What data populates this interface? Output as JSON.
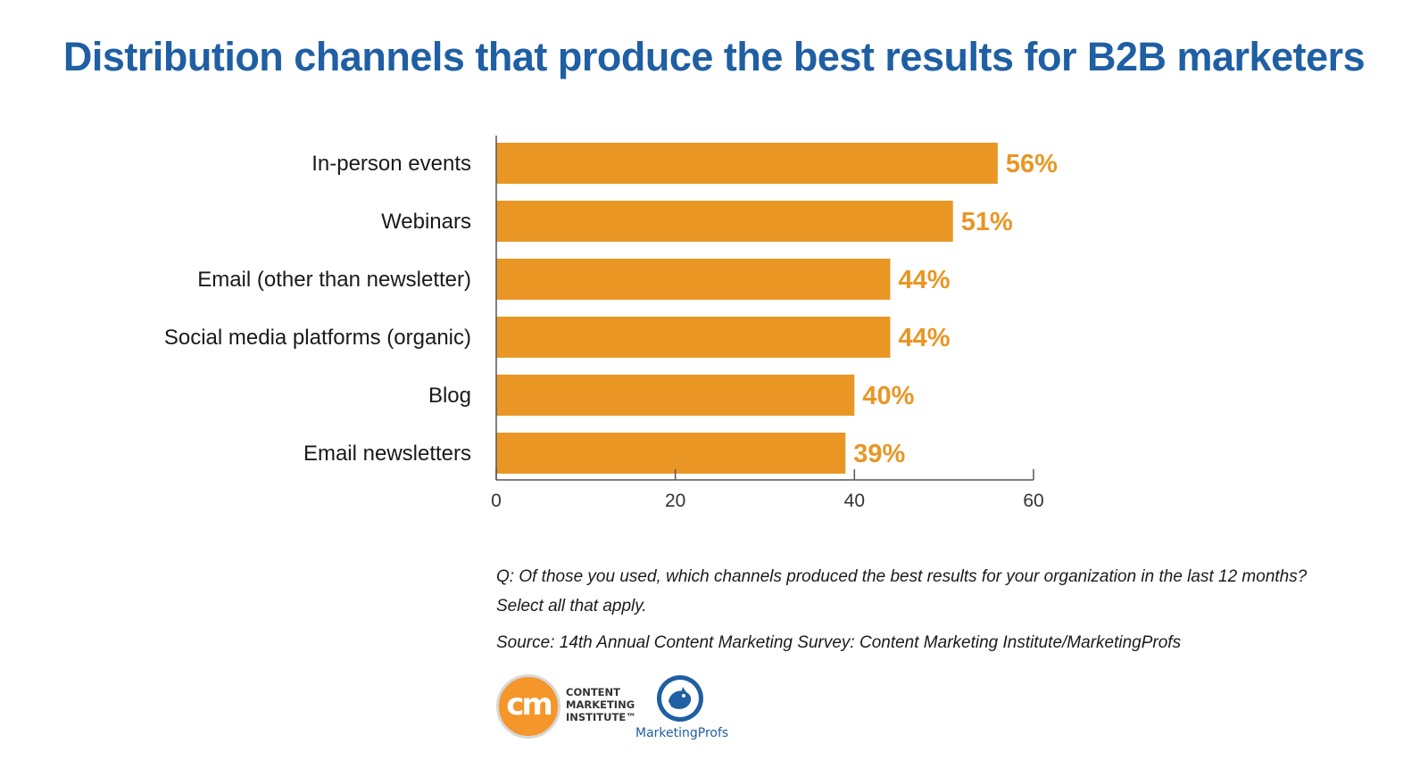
{
  "title": "Distribution channels that produce the best results for B2B marketers",
  "colors": {
    "bar": "#e99624",
    "value_label": "#e99624",
    "title": "#1f5fa3",
    "axis": "#555555"
  },
  "chart_data": {
    "type": "bar",
    "orientation": "horizontal",
    "categories": [
      "In-person events",
      "Webinars",
      "Email (other than newsletter)",
      "Social media platforms (organic)",
      "Blog",
      "Email newsletters"
    ],
    "values": [
      56,
      51,
      44,
      44,
      40,
      39
    ],
    "value_labels": [
      "56%",
      "51%",
      "44%",
      "44%",
      "40%",
      "39%"
    ],
    "xlim": [
      0,
      60
    ],
    "xticks": [
      0,
      20,
      40,
      60
    ],
    "xlabel": "",
    "ylabel": "",
    "grid": false
  },
  "notes": {
    "question_line1": "Q: Of those you used, which channels produced the best results for your organization in the last 12 months?",
    "question_line2": "Select all that apply.",
    "source": "Source: 14th Annual Content Marketing Survey: Content Marketing Institute/MarketingProfs"
  },
  "logos": {
    "cmi_mark": "cm",
    "cmi_text": "CONTENT\nMARKETING\nINSTITUTE™",
    "marketingprofs_text": "MarketingProfs"
  }
}
